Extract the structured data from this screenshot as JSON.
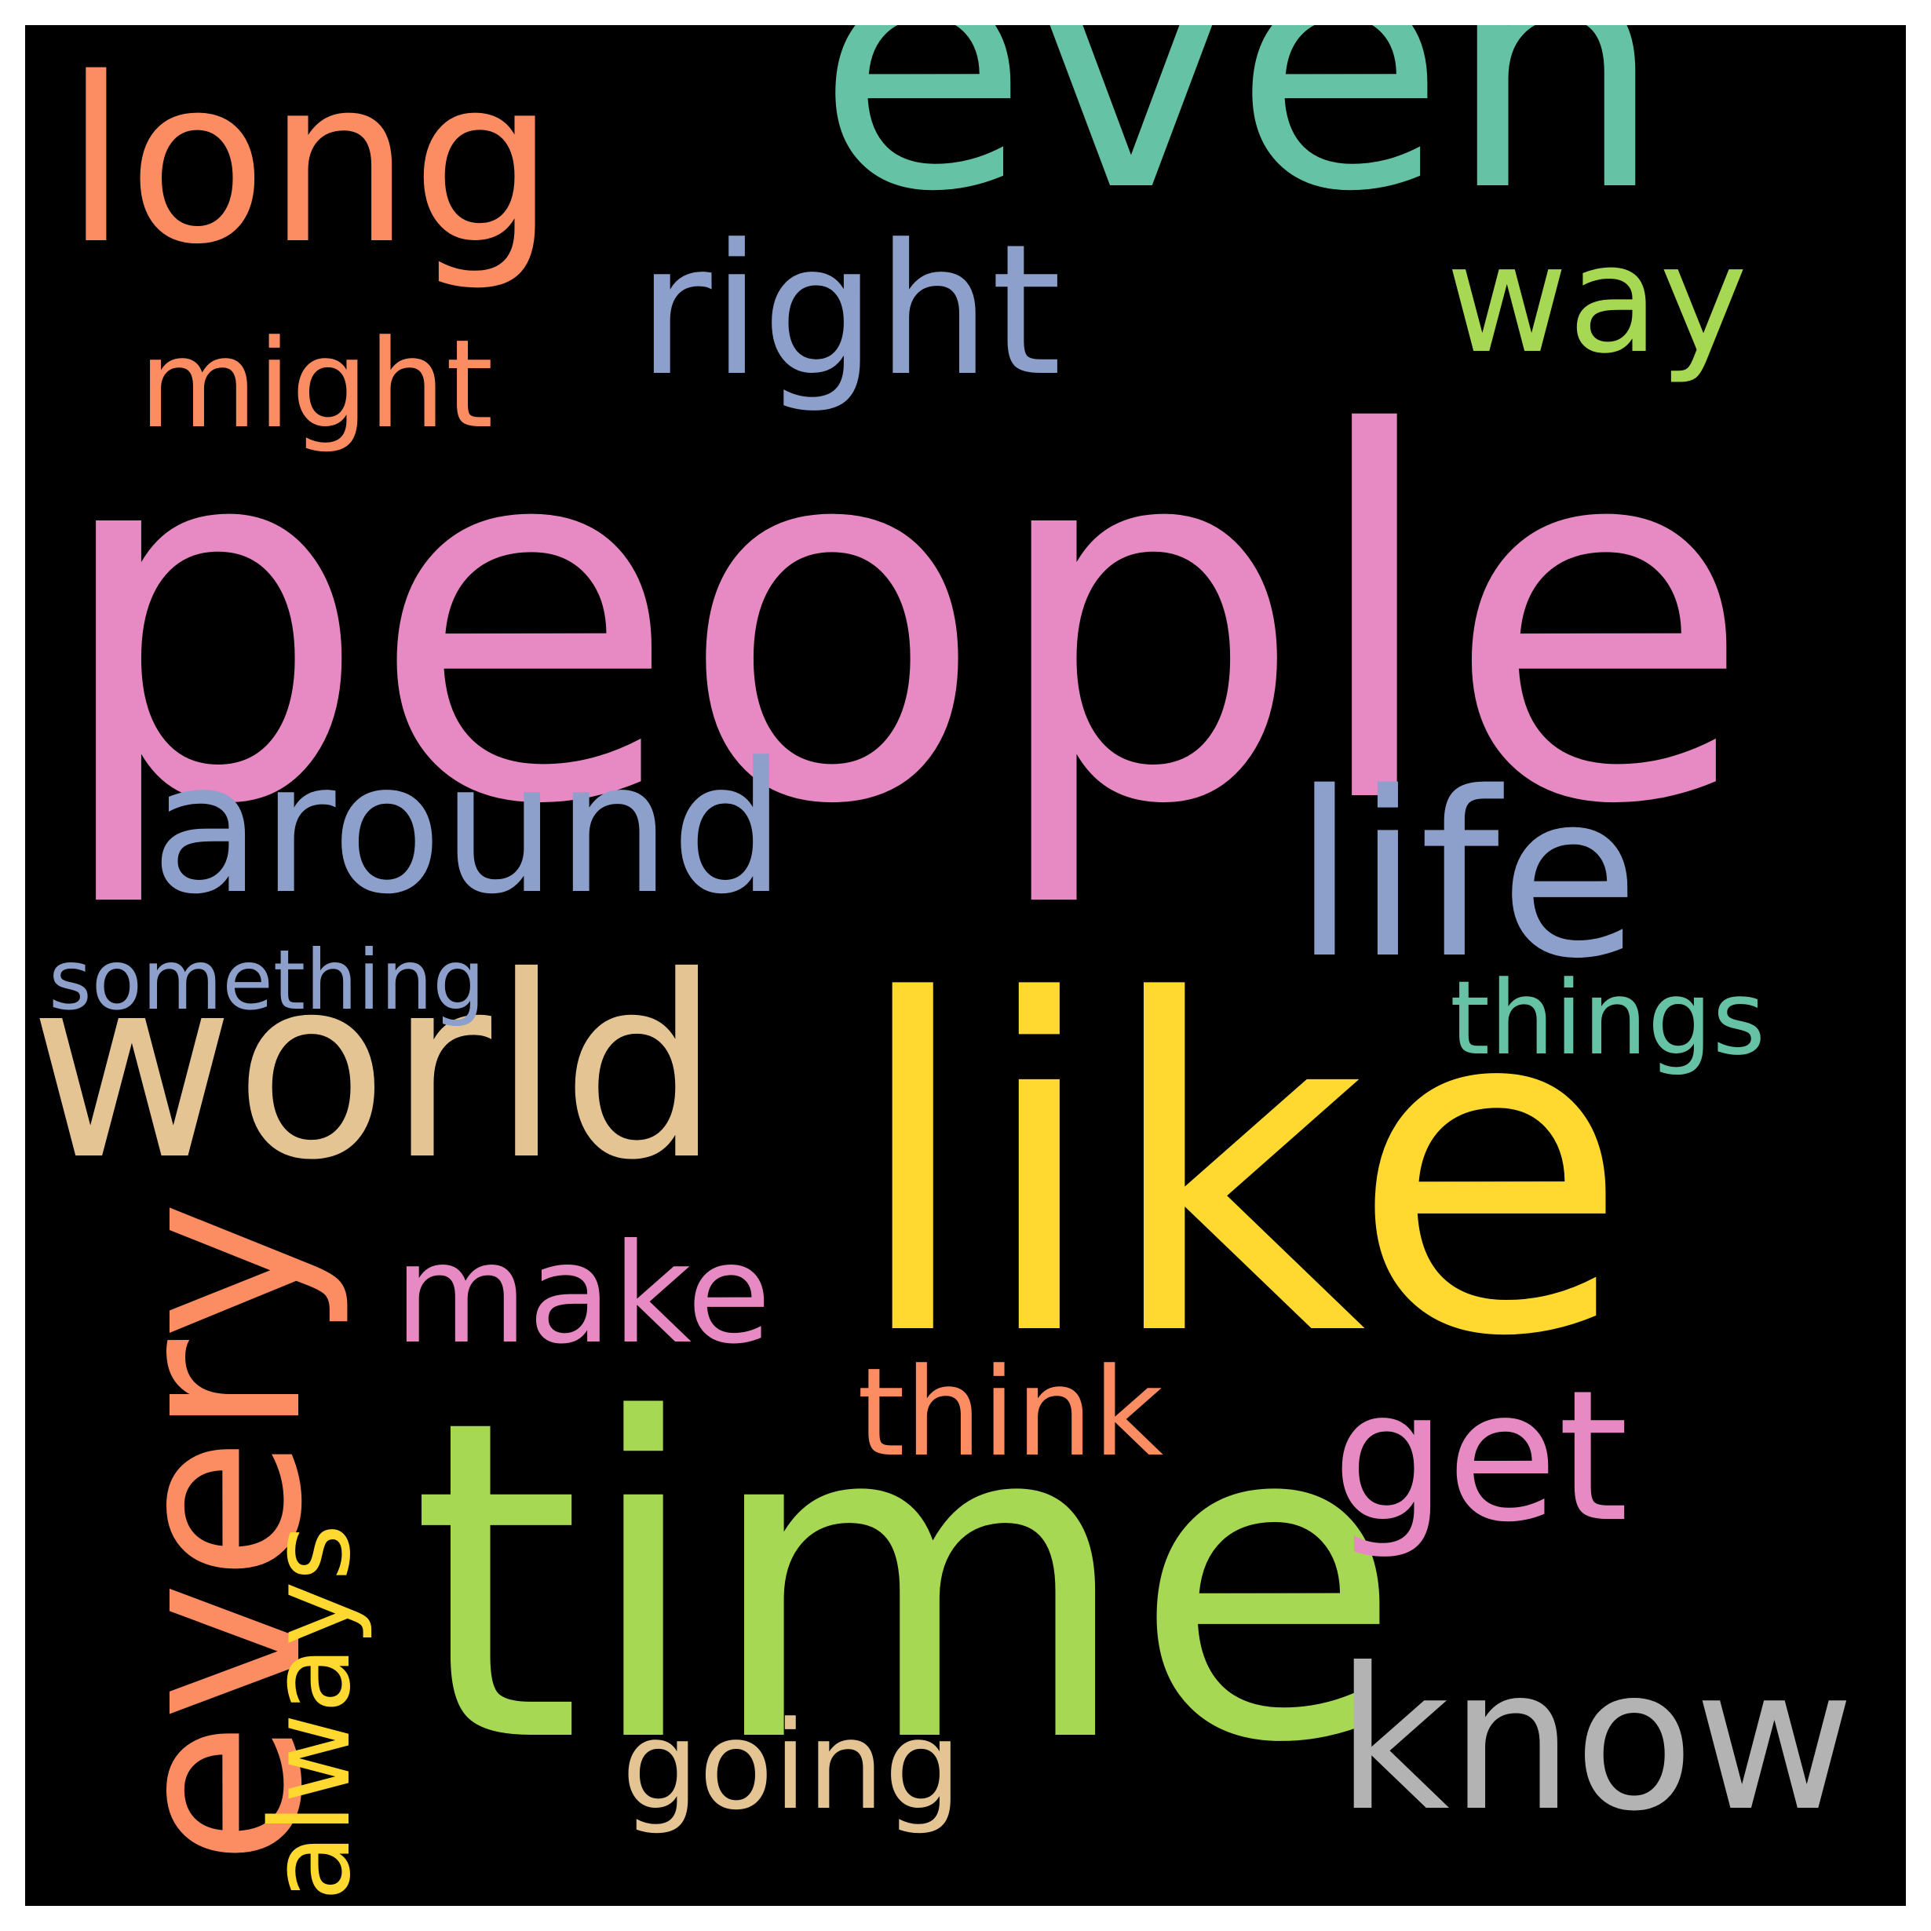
{
  "wordcloud": {
    "background": "#000000",
    "words": [
      {
        "text": "people",
        "color": "#e78ac3",
        "rotated": false
      },
      {
        "text": "like",
        "color": "#ffd92f",
        "rotated": false
      },
      {
        "text": "time",
        "color": "#a6d854",
        "rotated": false
      },
      {
        "text": "even",
        "color": "#66c2a5",
        "rotated": false
      },
      {
        "text": "world",
        "color": "#e5c494",
        "rotated": false
      },
      {
        "text": "every",
        "color": "#fc8d62",
        "rotated": true
      },
      {
        "text": "long",
        "color": "#fc8d62",
        "rotated": false
      },
      {
        "text": "around",
        "color": "#8da0cb",
        "rotated": false
      },
      {
        "text": "life",
        "color": "#8da0cb",
        "rotated": false
      },
      {
        "text": "right",
        "color": "#8da0cb",
        "rotated": false
      },
      {
        "text": "know",
        "color": "#b3b3b3",
        "rotated": false
      },
      {
        "text": "get",
        "color": "#e78ac3",
        "rotated": false
      },
      {
        "text": "make",
        "color": "#e78ac3",
        "rotated": false
      },
      {
        "text": "way",
        "color": "#a6d854",
        "rotated": false
      },
      {
        "text": "might",
        "color": "#fc8d62",
        "rotated": false
      },
      {
        "text": "think",
        "color": "#fc8d62",
        "rotated": false
      },
      {
        "text": "going",
        "color": "#e5c494",
        "rotated": false
      },
      {
        "text": "always",
        "color": "#ffd92f",
        "rotated": true
      },
      {
        "text": "things",
        "color": "#66c2a5",
        "rotated": false
      },
      {
        "text": "something",
        "color": "#8da0cb",
        "rotated": false
      }
    ]
  }
}
